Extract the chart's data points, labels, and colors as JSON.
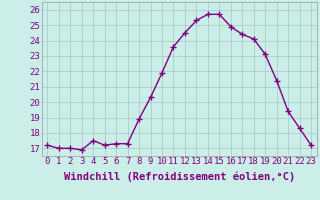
{
  "hours": [
    0,
    1,
    2,
    3,
    4,
    5,
    6,
    7,
    8,
    9,
    10,
    11,
    12,
    13,
    14,
    15,
    16,
    17,
    18,
    19,
    20,
    21,
    22,
    23
  ],
  "values": [
    17.2,
    17.0,
    17.0,
    16.9,
    17.5,
    17.2,
    17.3,
    17.3,
    18.9,
    20.3,
    21.9,
    23.6,
    24.5,
    25.3,
    25.7,
    25.7,
    24.9,
    24.4,
    24.1,
    23.1,
    21.4,
    19.4,
    18.3,
    17.2
  ],
  "line_color": "#800080",
  "marker": "+",
  "bg_color": "#cceee8",
  "grid_color": "#aacccc",
  "xlabel": "Windchill (Refroidissement éolien,°C)",
  "ylim": [
    16.5,
    26.5
  ],
  "xlim": [
    -0.5,
    23.5
  ],
  "yticks": [
    17,
    18,
    19,
    20,
    21,
    22,
    23,
    24,
    25,
    26
  ],
  "xtick_labels": [
    "0",
    "1",
    "2",
    "3",
    "4",
    "5",
    "6",
    "7",
    "8",
    "9",
    "10",
    "11",
    "12",
    "13",
    "14",
    "15",
    "16",
    "17",
    "18",
    "19",
    "20",
    "21",
    "22",
    "23"
  ],
  "tick_fontsize": 6.5,
  "label_fontsize": 7.5,
  "line_width": 1.0,
  "marker_size": 4,
  "marker_edge_width": 1.0
}
